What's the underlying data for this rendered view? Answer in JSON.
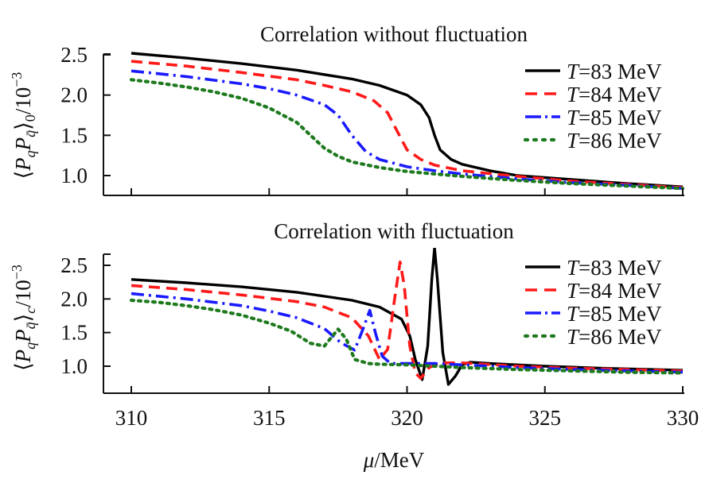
{
  "chart_data": [
    {
      "type": "line",
      "title": "Correlation without fluctuation",
      "ylabel": "⟨P_q P_q̄⟩_0 / 10^−3",
      "ylabel_sub": "0",
      "xlabel": "",
      "xlim": [
        309,
        330
      ],
      "ylim": [
        0.75,
        2.55
      ],
      "yticks": [
        "1.0",
        "1.5",
        "2.0",
        "2.5"
      ],
      "ytick_values": [
        1.0,
        1.5,
        2.0,
        2.5
      ],
      "xticks": [
        "",
        "",
        "",
        "",
        ""
      ],
      "xtick_values": [
        310,
        315,
        320,
        325,
        330
      ],
      "legend_position": "top-right",
      "series": [
        {
          "name": "T=83 MeV",
          "T": "83",
          "color": "#000000",
          "style": "solid",
          "x": [
            310,
            312,
            314,
            316,
            318,
            319,
            320,
            320.5,
            320.8,
            321.0,
            321.2,
            321.6,
            322,
            323,
            324,
            326,
            328,
            330
          ],
          "y": [
            2.52,
            2.46,
            2.39,
            2.31,
            2.2,
            2.12,
            2.0,
            1.88,
            1.72,
            1.5,
            1.32,
            1.2,
            1.14,
            1.06,
            1.0,
            0.95,
            0.9,
            0.86
          ]
        },
        {
          "name": "T=84 MeV",
          "T": "84",
          "color": "#ff1a1a",
          "style": "dashed",
          "x": [
            310,
            312,
            314,
            316,
            317,
            318,
            318.8,
            319.3,
            319.6,
            320,
            320.5,
            321,
            322,
            324,
            326,
            328,
            330
          ],
          "y": [
            2.42,
            2.36,
            2.28,
            2.19,
            2.12,
            2.04,
            1.93,
            1.78,
            1.58,
            1.32,
            1.2,
            1.13,
            1.06,
            0.99,
            0.93,
            0.89,
            0.85
          ]
        },
        {
          "name": "T=85 MeV",
          "T": "85",
          "color": "#1a1aff",
          "style": "dashdot",
          "x": [
            310,
            312,
            314,
            315,
            316,
            317,
            317.5,
            318,
            318.5,
            319,
            320,
            321,
            322,
            324,
            326,
            328,
            330
          ],
          "y": [
            2.3,
            2.23,
            2.14,
            2.08,
            2.0,
            1.88,
            1.75,
            1.5,
            1.3,
            1.2,
            1.11,
            1.06,
            1.02,
            0.96,
            0.91,
            0.88,
            0.84
          ]
        },
        {
          "name": "T=86 MeV",
          "T": "86",
          "color": "#1e7a1e",
          "style": "dotted",
          "x": [
            310,
            311,
            312,
            313,
            314,
            315,
            316,
            316.5,
            317,
            317.5,
            318,
            319,
            320,
            322,
            324,
            326,
            328,
            330
          ],
          "y": [
            2.19,
            2.15,
            2.1,
            2.04,
            1.96,
            1.84,
            1.66,
            1.5,
            1.34,
            1.24,
            1.17,
            1.1,
            1.05,
            0.99,
            0.94,
            0.9,
            0.87,
            0.84
          ]
        }
      ]
    },
    {
      "type": "line",
      "title": "Correlation with fluctuation",
      "ylabel": "⟨P_q P_q̄⟩_c / 10^−3",
      "ylabel_sub": "c",
      "xlabel": "μ/MeV",
      "xlim": [
        309,
        330
      ],
      "ylim": [
        0.6,
        2.76
      ],
      "yticks": [
        "1.0",
        "1.5",
        "2.0",
        "2.5"
      ],
      "ytick_values": [
        1.0,
        1.5,
        2.0,
        2.5
      ],
      "xticks": [
        "310",
        "315",
        "320",
        "325",
        "330"
      ],
      "xtick_values": [
        310,
        315,
        320,
        325,
        330
      ],
      "legend_position": "top-right",
      "series": [
        {
          "name": "T=83 MeV",
          "T": "83",
          "color": "#000000",
          "style": "solid",
          "x": [
            310,
            312,
            314,
            316,
            318,
            319,
            319.8,
            320.1,
            320.3,
            320.55,
            320.75,
            320.9,
            321.0,
            321.1,
            321.3,
            321.5,
            321.75,
            322,
            322.3,
            323,
            325,
            327,
            330
          ],
          "y": [
            2.29,
            2.24,
            2.18,
            2.1,
            1.98,
            1.88,
            1.7,
            1.45,
            1.1,
            0.8,
            1.3,
            2.3,
            2.76,
            2.3,
            1.2,
            0.73,
            0.85,
            1.02,
            1.06,
            1.04,
            1.0,
            0.97,
            0.94
          ]
        },
        {
          "name": "T=84 MeV",
          "T": "84",
          "color": "#ff1a1a",
          "style": "dashed",
          "x": [
            310,
            312,
            314,
            316,
            317,
            318,
            318.6,
            319.0,
            319.3,
            319.55,
            319.75,
            319.9,
            320.1,
            320.3,
            320.5,
            320.8,
            321.2,
            322,
            324,
            326,
            328,
            330
          ],
          "y": [
            2.2,
            2.14,
            2.06,
            1.96,
            1.88,
            1.72,
            1.45,
            1.1,
            1.25,
            2.0,
            2.55,
            2.2,
            1.3,
            0.9,
            0.82,
            0.98,
            1.05,
            1.05,
            1.0,
            0.97,
            0.95,
            0.93
          ]
        },
        {
          "name": "T=85 MeV",
          "T": "85",
          "color": "#1a1aff",
          "style": "dashdot",
          "x": [
            310,
            312,
            314,
            315,
            316,
            317,
            317.6,
            318.1,
            318.4,
            318.65,
            318.85,
            319.1,
            319.4,
            320,
            321,
            322,
            324,
            326,
            328,
            330
          ],
          "y": [
            2.08,
            2.0,
            1.9,
            1.82,
            1.72,
            1.56,
            1.35,
            1.24,
            1.55,
            1.83,
            1.5,
            1.15,
            1.04,
            1.04,
            1.04,
            1.02,
            0.98,
            0.95,
            0.93,
            0.91
          ]
        },
        {
          "name": "T=86 MeV",
          "T": "86",
          "color": "#1e7a1e",
          "style": "dotted",
          "x": [
            310,
            311,
            312,
            313,
            314,
            315,
            315.8,
            316.5,
            317.0,
            317.5,
            317.8,
            318.1,
            318.6,
            319,
            320,
            322,
            324,
            326,
            328,
            330
          ],
          "y": [
            1.98,
            1.95,
            1.9,
            1.84,
            1.76,
            1.64,
            1.52,
            1.34,
            1.3,
            1.55,
            1.4,
            1.1,
            1.04,
            1.03,
            1.02,
            0.98,
            0.95,
            0.93,
            0.91,
            0.9
          ]
        }
      ]
    }
  ]
}
